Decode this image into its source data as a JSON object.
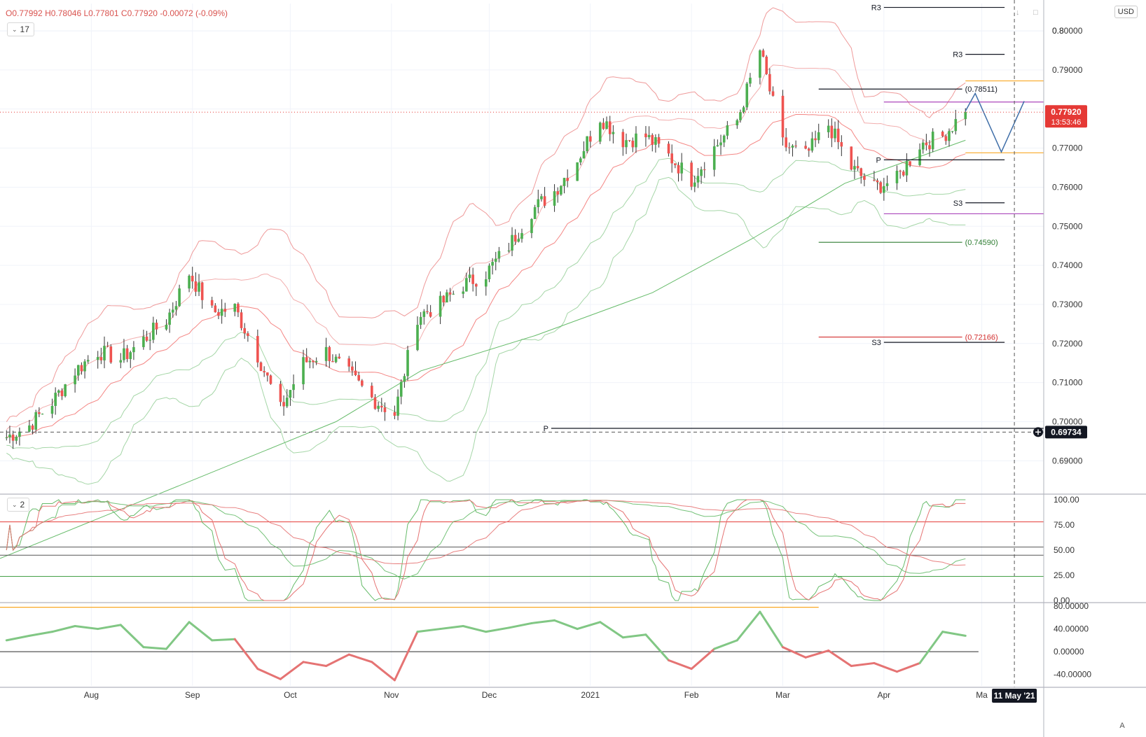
{
  "header": {
    "ohlc": {
      "o_label": "O",
      "o": "0.77992",
      "h_label": "H",
      "h": "0.78046",
      "l_label": "L",
      "l": "0.77801",
      "c_label": "C",
      "c": "0.77920",
      "change": "-0.00072",
      "change_pct": "(-0.09%)"
    },
    "indicator_count": "17",
    "currency": "USD",
    "pane2_count": "2",
    "auto_label": "A"
  },
  "colors": {
    "up": "#4caf50",
    "down": "#ef5350",
    "price_tag": "#e53935",
    "dark_tag": "#131722",
    "grid": "#eeeeee",
    "axis_text": "#333333"
  },
  "chart_data": [
    {
      "type": "candlestick",
      "instrument_currency": "USD",
      "ylim": [
        0.682,
        0.807
      ],
      "y_ticks": [
        "0.69000",
        "0.70000",
        "0.71000",
        "0.72000",
        "0.73000",
        "0.74000",
        "0.75000",
        "0.76000",
        "0.77000",
        "0.78000",
        "0.79000",
        "0.80000",
        "0.8"
      ],
      "x_tick_labels": [
        {
          "label": "Aug",
          "date": "2020-08-01"
        },
        {
          "label": "Sep",
          "date": "2020-09-01"
        },
        {
          "label": "Oct",
          "date": "2020-10-01"
        },
        {
          "label": "Nov",
          "date": "2020-11-01"
        },
        {
          "label": "Dec",
          "date": "2020-12-01"
        },
        {
          "label": "2021",
          "date": "2021-01-01"
        },
        {
          "label": "Feb",
          "date": "2021-02-01"
        },
        {
          "label": "Mar",
          "date": "2021-03-01"
        },
        {
          "label": "Apr",
          "date": "2021-04-01"
        },
        {
          "label": "Ma",
          "date": "2021-05-01"
        }
      ],
      "xlim": [
        "2020-07-04",
        "2021-05-20"
      ],
      "trend_path": [
        {
          "d": "2020-07-06",
          "v": 0.696
        },
        {
          "d": "2020-07-13",
          "v": 0.699
        },
        {
          "d": "2020-07-20",
          "v": 0.705
        },
        {
          "d": "2020-07-27",
          "v": 0.713
        },
        {
          "d": "2020-08-03",
          "v": 0.718
        },
        {
          "d": "2020-08-10",
          "v": 0.716
        },
        {
          "d": "2020-08-17",
          "v": 0.721
        },
        {
          "d": "2020-08-24",
          "v": 0.726
        },
        {
          "d": "2020-08-31",
          "v": 0.738
        },
        {
          "d": "2020-09-07",
          "v": 0.728
        },
        {
          "d": "2020-09-14",
          "v": 0.729
        },
        {
          "d": "2020-09-21",
          "v": 0.717
        },
        {
          "d": "2020-09-28",
          "v": 0.703
        },
        {
          "d": "2020-10-05",
          "v": 0.715
        },
        {
          "d": "2020-10-12",
          "v": 0.718
        },
        {
          "d": "2020-10-19",
          "v": 0.712
        },
        {
          "d": "2020-10-26",
          "v": 0.706
        },
        {
          "d": "2020-11-02",
          "v": 0.702
        },
        {
          "d": "2020-11-09",
          "v": 0.727
        },
        {
          "d": "2020-11-16",
          "v": 0.73
        },
        {
          "d": "2020-11-23",
          "v": 0.735
        },
        {
          "d": "2020-11-30",
          "v": 0.738
        },
        {
          "d": "2020-12-07",
          "v": 0.745
        },
        {
          "d": "2020-12-14",
          "v": 0.754
        },
        {
          "d": "2020-12-21",
          "v": 0.759
        },
        {
          "d": "2020-12-28",
          "v": 0.767
        },
        {
          "d": "2021-01-04",
          "v": 0.778
        },
        {
          "d": "2021-01-11",
          "v": 0.772
        },
        {
          "d": "2021-01-18",
          "v": 0.773
        },
        {
          "d": "2021-01-25",
          "v": 0.768
        },
        {
          "d": "2021-02-01",
          "v": 0.762
        },
        {
          "d": "2021-02-08",
          "v": 0.77
        },
        {
          "d": "2021-02-15",
          "v": 0.777
        },
        {
          "d": "2021-02-22",
          "v": 0.795
        },
        {
          "d": "2021-03-01",
          "v": 0.771
        },
        {
          "d": "2021-03-08",
          "v": 0.768
        },
        {
          "d": "2021-03-15",
          "v": 0.776
        },
        {
          "d": "2021-03-22",
          "v": 0.765
        },
        {
          "d": "2021-03-29",
          "v": 0.76
        },
        {
          "d": "2021-04-05",
          "v": 0.762
        },
        {
          "d": "2021-04-12",
          "v": 0.771
        },
        {
          "d": "2021-04-19",
          "v": 0.773
        },
        {
          "d": "2021-04-26",
          "v": 0.7795
        }
      ],
      "ma200": [
        {
          "d": "2020-07-04",
          "v": 0.665
        },
        {
          "d": "2020-09-01",
          "v": 0.685
        },
        {
          "d": "2020-10-15",
          "v": 0.7
        },
        {
          "d": "2020-11-10",
          "v": 0.713
        },
        {
          "d": "2020-12-15",
          "v": 0.722
        },
        {
          "d": "2021-01-20",
          "v": 0.733
        },
        {
          "d": "2021-02-20",
          "v": 0.747
        },
        {
          "d": "2021-03-20",
          "v": 0.761
        },
        {
          "d": "2021-04-26",
          "v": 0.772
        }
      ],
      "pivot_lines": [
        {
          "label": "R3",
          "value": 0.806,
          "from": "2021-04-01",
          "to": "2021-05-08"
        },
        {
          "label": "R3",
          "value": 0.794,
          "from": "2021-04-26",
          "to": "2021-05-08"
        },
        {
          "label": "P",
          "value": 0.767,
          "from": "2021-04-01",
          "to": "2021-05-08"
        },
        {
          "label": "S3",
          "value": 0.756,
          "from": "2021-04-26",
          "to": "2021-05-08"
        },
        {
          "label": "S3",
          "value": 0.7203,
          "from": "2021-04-01",
          "to": "2021-05-08"
        },
        {
          "label": "P",
          "value": 0.6983,
          "from": "2020-12-20",
          "to": "2021-05-20"
        }
      ],
      "level_lines": [
        {
          "label": "(0.78511)",
          "value": 0.78511,
          "from": "2021-03-12",
          "to": "2021-04-25",
          "color": "#131722"
        },
        {
          "label": "(0.74590)",
          "value": 0.7459,
          "from": "2021-03-12",
          "to": "2021-04-25",
          "color": "#2e7d32"
        },
        {
          "label": "(0.72166)",
          "value": 0.72166,
          "from": "2021-03-12",
          "to": "2021-04-25",
          "color": "#d32f2f"
        }
      ],
      "price_tags": [
        {
          "label": "0.77920",
          "sub": "13:53:46",
          "value": 0.7792
        },
        {
          "label": "0.69734",
          "value": 0.69734
        }
      ],
      "crosshair_date_label": "11 May '21",
      "crosshair_date": "2021-05-11"
    },
    {
      "type": "line",
      "name": "stochastic",
      "ylim": [
        0,
        100
      ],
      "y_ticks": [
        "0.00",
        "25.00",
        "50.00",
        "75.00",
        "100.00"
      ],
      "levels": [
        78,
        53,
        45,
        24
      ]
    },
    {
      "type": "line",
      "name": "momentum",
      "ylim": [
        -60,
        80
      ],
      "y_ticks": [
        "-40.00000",
        "0.00000",
        "40.00000",
        "80.00000"
      ],
      "values": [
        {
          "d": "2020-07-06",
          "v": 20
        },
        {
          "d": "2020-07-13",
          "v": 28
        },
        {
          "d": "2020-07-20",
          "v": 35
        },
        {
          "d": "2020-07-27",
          "v": 45
        },
        {
          "d": "2020-08-03",
          "v": 40
        },
        {
          "d": "2020-08-10",
          "v": 47
        },
        {
          "d": "2020-08-17",
          "v": 8
        },
        {
          "d": "2020-08-24",
          "v": 5
        },
        {
          "d": "2020-08-31",
          "v": 52
        },
        {
          "d": "2020-09-07",
          "v": 20
        },
        {
          "d": "2020-09-14",
          "v": 22
        },
        {
          "d": "2020-09-21",
          "v": -30
        },
        {
          "d": "2020-09-28",
          "v": -48
        },
        {
          "d": "2020-10-05",
          "v": -18
        },
        {
          "d": "2020-10-12",
          "v": -25
        },
        {
          "d": "2020-10-19",
          "v": -5
        },
        {
          "d": "2020-10-26",
          "v": -18
        },
        {
          "d": "2020-11-02",
          "v": -50
        },
        {
          "d": "2020-11-09",
          "v": 35
        },
        {
          "d": "2020-11-16",
          "v": 40
        },
        {
          "d": "2020-11-23",
          "v": 45
        },
        {
          "d": "2020-11-30",
          "v": 35
        },
        {
          "d": "2020-12-07",
          "v": 42
        },
        {
          "d": "2020-12-14",
          "v": 50
        },
        {
          "d": "2020-12-21",
          "v": 55
        },
        {
          "d": "2020-12-28",
          "v": 40
        },
        {
          "d": "2021-01-04",
          "v": 52
        },
        {
          "d": "2021-01-11",
          "v": 25
        },
        {
          "d": "2021-01-18",
          "v": 30
        },
        {
          "d": "2021-01-25",
          "v": -15
        },
        {
          "d": "2021-02-01",
          "v": -30
        },
        {
          "d": "2021-02-08",
          "v": 5
        },
        {
          "d": "2021-02-15",
          "v": 20
        },
        {
          "d": "2021-02-22",
          "v": 70
        },
        {
          "d": "2021-03-01",
          "v": 8
        },
        {
          "d": "2021-03-08",
          "v": -10
        },
        {
          "d": "2021-03-15",
          "v": 2
        },
        {
          "d": "2021-03-22",
          "v": -25
        },
        {
          "d": "2021-03-29",
          "v": -20
        },
        {
          "d": "2021-04-05",
          "v": -35
        },
        {
          "d": "2021-04-12",
          "v": -20
        },
        {
          "d": "2021-04-19",
          "v": 35
        },
        {
          "d": "2021-04-26",
          "v": 28
        }
      ]
    }
  ]
}
